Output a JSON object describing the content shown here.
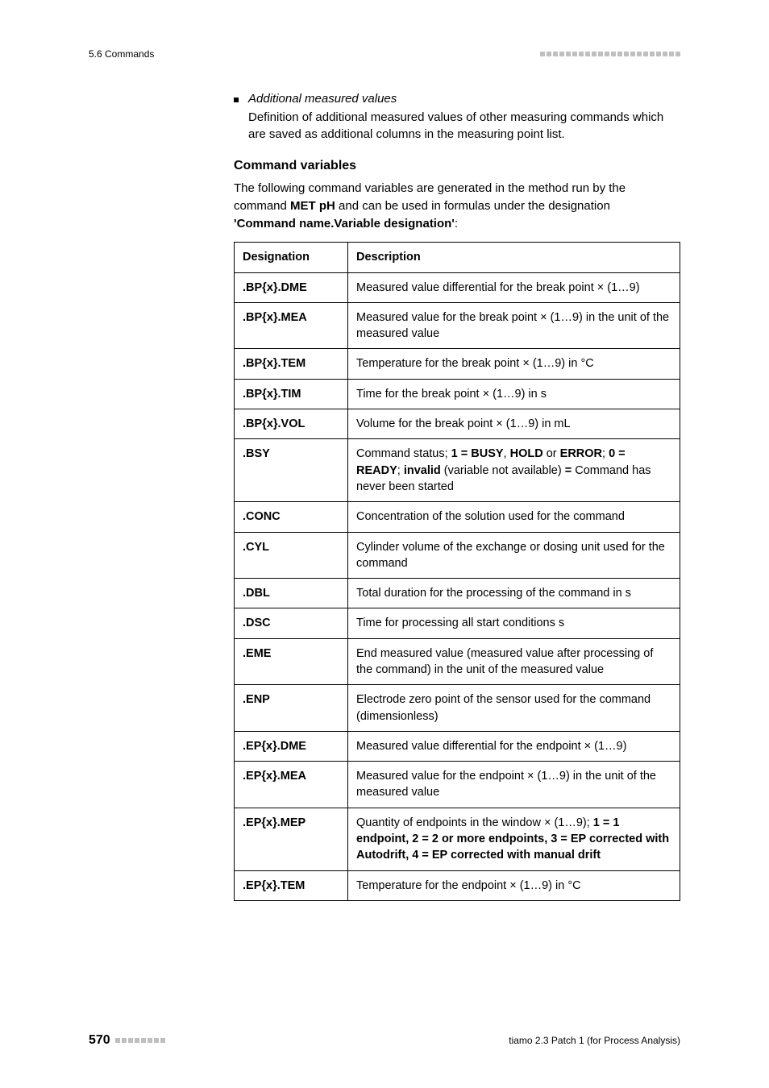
{
  "header": {
    "section": "5.6 Commands"
  },
  "bullet": {
    "title": "Additional measured values",
    "desc": "Definition of additional measured values of other measuring commands which are saved as additional columns in the measuring point list."
  },
  "section_heading": "Command variables",
  "intro": {
    "line1": "The following command variables are generated in the method run by the command ",
    "bold1": "MET pH",
    "line2": " and can be used in formulas under the designation ",
    "bold2": "'Command name.Variable designation'",
    "line3": ":"
  },
  "table": {
    "header_designation": "Designation",
    "header_description": "Description",
    "rows": [
      {
        "d": ".BP{x}.DME",
        "desc": "Measured value differential for the break point × (1…9)"
      },
      {
        "d": ".BP{x}.MEA",
        "desc": "Measured value for the break point × (1…9) in the unit of the measured value"
      },
      {
        "d": ".BP{x}.TEM",
        "desc": "Temperature for the break point × (1…9) in °C"
      },
      {
        "d": ".BP{x}.TIM",
        "desc": "Time for the break point × (1…9) in s"
      },
      {
        "d": ".BP{x}.VOL",
        "desc": "Volume for the break point × (1…9) in mL"
      },
      {
        "d": ".BSY",
        "desc": "Command status; <b>1 = BUSY</b>, <b>HOLD</b> or <b>ERROR</b>; <b>0 = READY</b>; <b>invalid</b> (variable not available) <b>=</b> Command has never been started"
      },
      {
        "d": ".CONC",
        "desc": "Concentration of the solution used for the command"
      },
      {
        "d": ".CYL",
        "desc": "Cylinder volume of the exchange or dosing unit used for the command"
      },
      {
        "d": ".DBL",
        "desc": "Total duration for the processing of the command in s"
      },
      {
        "d": ".DSC",
        "desc": "Time for processing all start conditions s"
      },
      {
        "d": ".EME",
        "desc": "End measured value (measured value after processing of the command) in the unit of the measured value"
      },
      {
        "d": ".ENP",
        "desc": "Electrode zero point of the sensor used for the command (dimensionless)"
      },
      {
        "d": ".EP{x}.DME",
        "desc": "Measured value differential for the endpoint × (1…9)"
      },
      {
        "d": ".EP{x}.MEA",
        "desc": "Measured value for the endpoint × (1…9) in the unit of the measured value"
      },
      {
        "d": ".EP{x}.MEP",
        "desc": "Quantity of endpoints in the window × (1…9); <b>1 = 1 endpoint, 2 = 2 or more endpoints, 3 = EP corrected with Autodrift, 4 = EP corrected with manual drift</b>"
      },
      {
        "d": ".EP{x}.TEM",
        "desc": "Temperature for the endpoint × (1…9) in °C"
      }
    ]
  },
  "footer": {
    "page_number": "570",
    "product": "tiamo 2.3 Patch 1 (for Process Analysis)"
  }
}
